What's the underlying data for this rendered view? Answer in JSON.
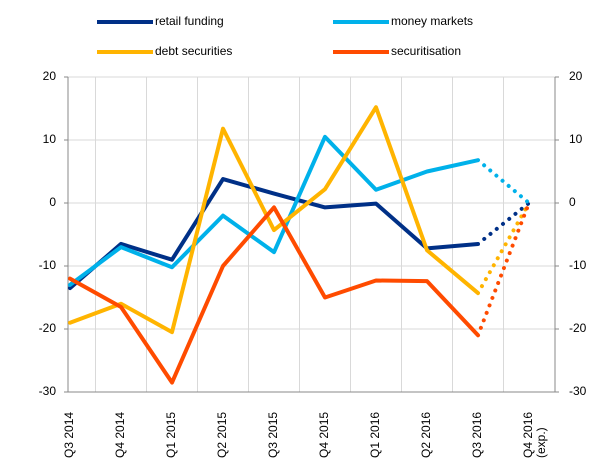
{
  "chart_data": {
    "type": "line",
    "categories": [
      "Q3 2014",
      "Q4 2014",
      "Q1 2015",
      "Q2 2015",
      "Q3 2015",
      "Q4 2015",
      "Q1 2016",
      "Q2 2016",
      "Q3 2016",
      "Q4 2016 (exp.)"
    ],
    "series": [
      {
        "name": "retail funding",
        "color": "#003087",
        "values": [
          -13.5,
          -6.5,
          -9,
          3.8,
          1.5,
          -0.7,
          -0.1,
          -7.2,
          -6.5,
          0
        ]
      },
      {
        "name": "money markets",
        "color": "#00b1ea",
        "values": [
          -13,
          -7,
          -10.2,
          -2,
          -7.8,
          10.5,
          2.1,
          5,
          6.8,
          0
        ]
      },
      {
        "name": "debt securities",
        "color": "#ffb400",
        "values": [
          -19,
          -16,
          -20.5,
          11.8,
          -4.3,
          2.2,
          15.2,
          -7.5,
          -14.3,
          0
        ]
      },
      {
        "name": "securitisation",
        "color": "#ff4b00",
        "values": [
          -12,
          -16.5,
          -28.5,
          -10,
          -0.7,
          -15,
          -12.3,
          -12.4,
          -21,
          0
        ]
      }
    ],
    "dotted_last_segment": true,
    "ylim": [
      -30,
      20
    ],
    "yticks": [
      -30,
      -20,
      -10,
      0,
      10,
      20
    ],
    "y2lim": [
      -30,
      20
    ],
    "y2ticks": [
      -30,
      -20,
      -10,
      0,
      10,
      20
    ],
    "grid": true
  }
}
